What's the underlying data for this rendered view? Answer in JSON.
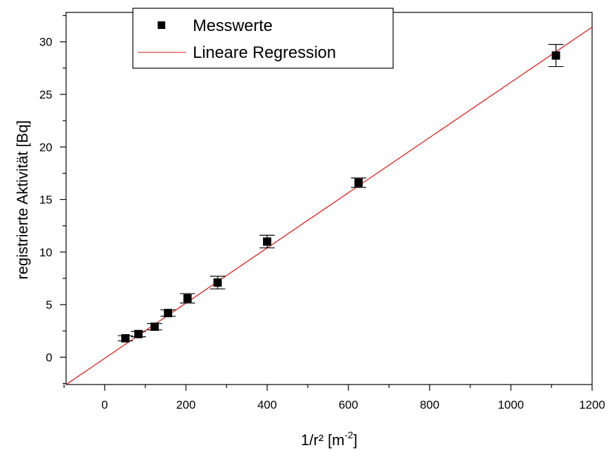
{
  "chart_data": {
    "type": "scatter",
    "title": "",
    "xlabel_main": "1/r² [m",
    "xlabel_sup": "-2",
    "xlabel_tail": "]",
    "ylabel": "registrierte Aktivität [Bq]",
    "xlim": [
      -95,
      1200
    ],
    "ylim": [
      -2.6,
      32.8
    ],
    "x_ticks": [
      0,
      200,
      400,
      600,
      800,
      1000,
      1200
    ],
    "y_ticks": [
      0,
      5,
      10,
      15,
      20,
      25,
      30
    ],
    "grid": false,
    "legend_position": "top-left",
    "series": [
      {
        "name": "Messwerte",
        "kind": "points",
        "color": "#000000",
        "x": [
          51,
          83,
          123,
          156,
          204,
          278,
          400,
          625,
          1111
        ],
        "y": [
          1.8,
          2.2,
          2.9,
          4.2,
          5.6,
          7.1,
          11.0,
          16.6,
          28.7
        ],
        "yerr": [
          0.25,
          0.25,
          0.3,
          0.3,
          0.45,
          0.6,
          0.6,
          0.45,
          1.05
        ]
      },
      {
        "name": "Lineare Regression",
        "kind": "line",
        "color": "#e01010",
        "x": [
          -95,
          1200
        ],
        "y": [
          -2.6,
          31.4
        ]
      }
    ]
  }
}
